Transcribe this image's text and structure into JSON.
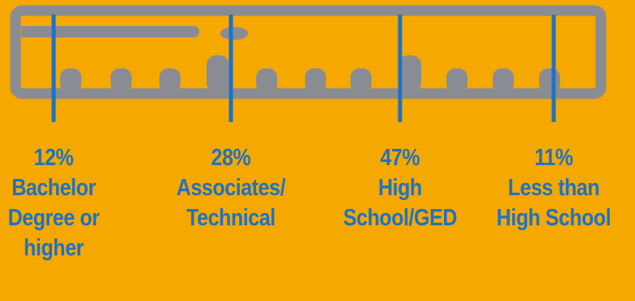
{
  "chart_data": {
    "type": "bar",
    "title": "",
    "categories": [
      "Bachelor\nDegree or\nhigher",
      "Associates/\nTechnical",
      "High\nSchool/GED",
      "Less than\nHigh School"
    ],
    "values": [
      12,
      28,
      47,
      11
    ],
    "value_labels": [
      "12%",
      "28%",
      "47%",
      "11%"
    ],
    "unit": "%"
  },
  "colors": {
    "background": "#F5A800",
    "ruler": "#8A8C94",
    "marker": "#1F72C4",
    "label_text": "#1F72C4"
  },
  "icons": {
    "ruler": "ruler-icon"
  }
}
